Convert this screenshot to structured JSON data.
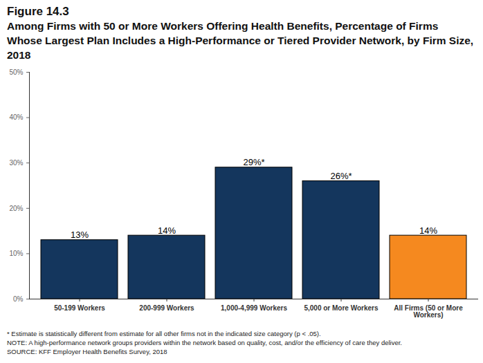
{
  "chart_data": {
    "type": "bar",
    "title": "Figure 14.3",
    "subtitle": "Among Firms with 50 or More Workers Offering Health Benefits, Percentage of Firms Whose Largest Plan Includes a High-Performance or Tiered Provider Network, by Firm Size, 2018",
    "categories": [
      "50-199 Workers",
      "200-999 Workers",
      "1,000-4,999 Workers",
      "5,000 or More Workers",
      "All Firms (50 or More Workers)"
    ],
    "values": [
      13,
      14,
      29,
      26,
      14
    ],
    "value_labels": [
      "13%",
      "14%",
      "29%*",
      "26%*",
      "14%"
    ],
    "data_labels": true,
    "colors": [
      "#14365d",
      "#14365d",
      "#14365d",
      "#14365d",
      "#f5891f"
    ],
    "ylim": [
      0,
      50
    ],
    "yticks": [
      {
        "value": 0,
        "label": "0%"
      },
      {
        "value": 10,
        "label": "10%"
      },
      {
        "value": 20,
        "label": "20%"
      },
      {
        "value": 30,
        "label": "30%"
      },
      {
        "value": 40,
        "label": "40%"
      },
      {
        "value": 50,
        "label": "50%"
      }
    ],
    "grid": false,
    "notes": [
      "* Estimate is statistically different from estimate for all other firms not in the indicated size category (p < .05).",
      "NOTE: A high-performance network groups providers within the network based on quality, cost, and/or the efficiency of care they deliver.",
      "SOURCE: KFF Employer Health Benefits Survey, 2018"
    ]
  }
}
